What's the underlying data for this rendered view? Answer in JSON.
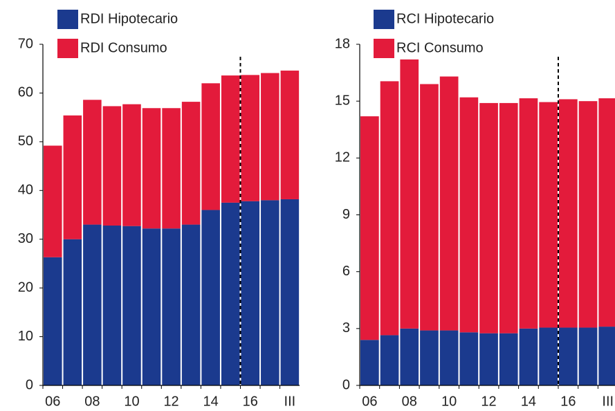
{
  "chart_data": [
    {
      "type": "stacked-bar",
      "categories": [
        "06",
        null,
        "08",
        null,
        "10",
        null,
        "12",
        null,
        "14",
        null,
        "16",
        null,
        "III"
      ],
      "series": [
        {
          "name": "RDI Hipotecario",
          "color": "#1b3a8e",
          "values": [
            26.3,
            30.0,
            33.0,
            32.8,
            32.7,
            32.2,
            32.2,
            33.0,
            36.0,
            37.5,
            37.8,
            38.0,
            38.2
          ]
        },
        {
          "name": "RDI Consumo",
          "color": "#e31b3b",
          "values": [
            22.9,
            25.4,
            25.6,
            24.5,
            25.0,
            24.7,
            24.7,
            25.2,
            26.0,
            26.1,
            25.9,
            26.1,
            26.4
          ]
        }
      ],
      "ylim": [
        0,
        70
      ],
      "yticks": [
        0,
        10,
        20,
        30,
        40,
        50,
        60,
        70
      ]
    },
    {
      "type": "stacked-bar",
      "categories": [
        "06",
        null,
        "08",
        null,
        "10",
        null,
        "12",
        null,
        "14",
        null,
        "16",
        null,
        "III"
      ],
      "series": [
        {
          "name": "RCI Hipotecario",
          "color": "#1b3a8e",
          "values": [
            2.4,
            2.65,
            3.0,
            2.9,
            2.9,
            2.8,
            2.75,
            2.75,
            3.0,
            3.05,
            3.05,
            3.05,
            3.1
          ]
        },
        {
          "name": "RCI Consumo",
          "color": "#e31b3b",
          "values": [
            11.8,
            13.4,
            14.2,
            13.0,
            13.4,
            12.4,
            12.15,
            12.15,
            12.15,
            11.9,
            12.05,
            11.95,
            12.05
          ]
        }
      ],
      "ylim": [
        0,
        18
      ],
      "yticks": [
        0,
        3,
        6,
        9,
        12,
        15,
        18
      ]
    }
  ]
}
